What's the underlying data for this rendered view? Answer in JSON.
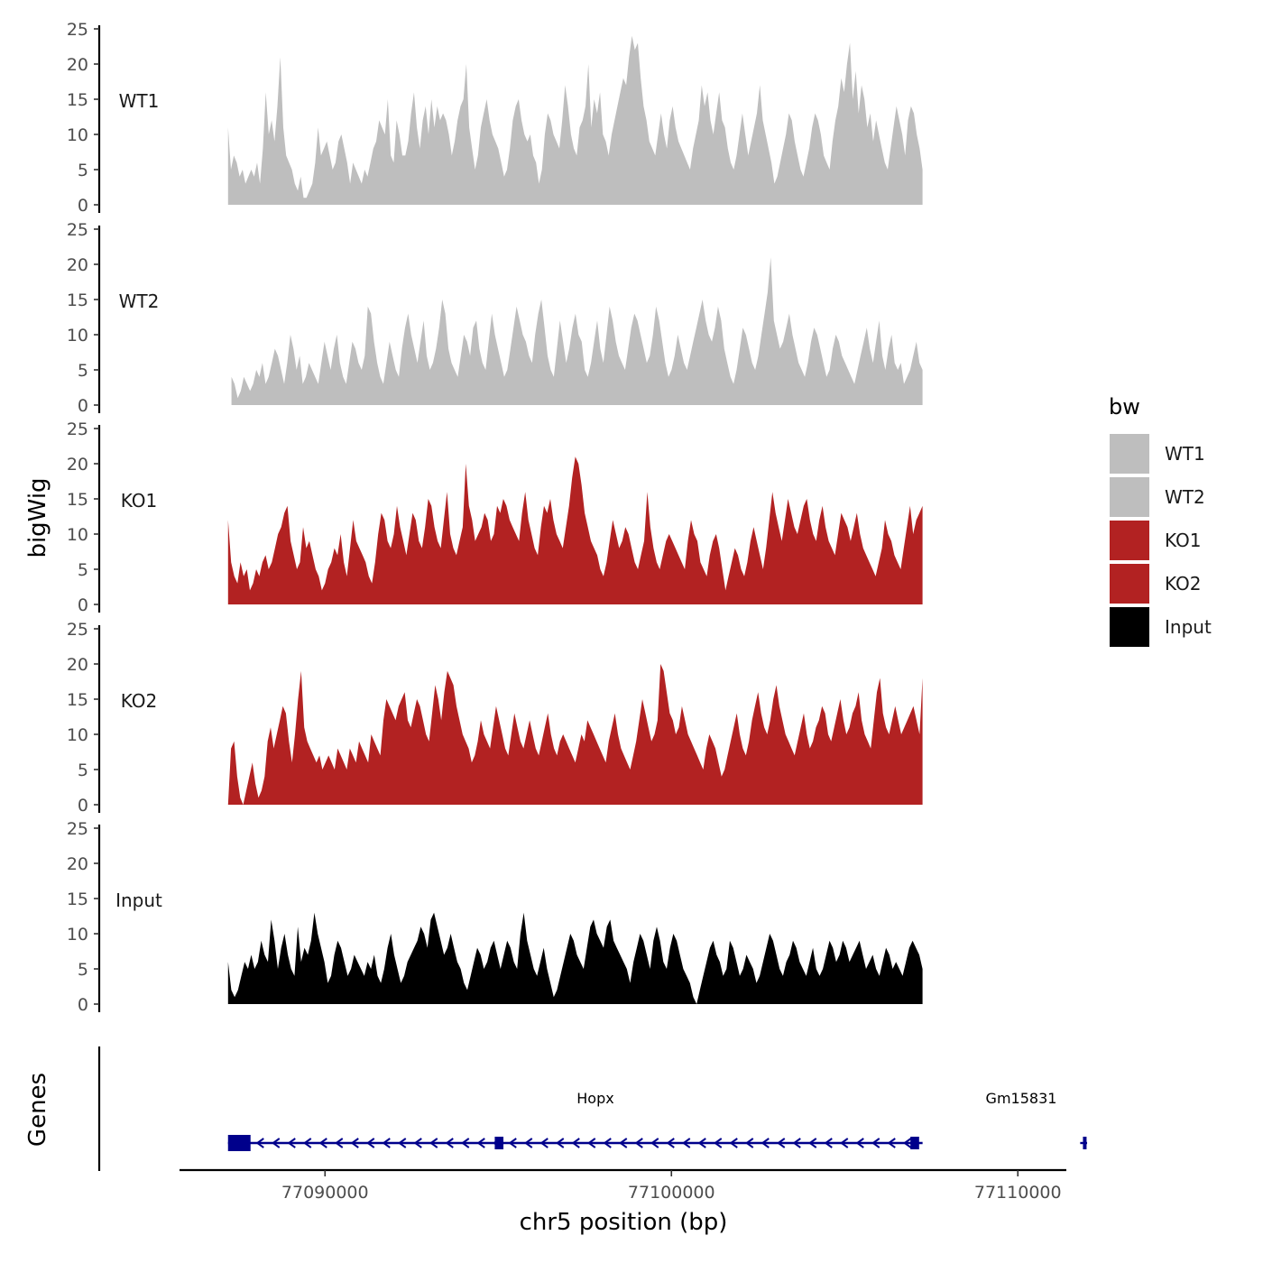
{
  "chart_data": {
    "type": "area",
    "ylabel": "bigWig",
    "xlabel": "chr5 position (bp)",
    "chromosome": "chr5",
    "ylim": [
      0,
      25
    ],
    "yticks": [
      0,
      5,
      10,
      15,
      20,
      25
    ],
    "xlim": [
      77085800,
      77111400
    ],
    "xticks": [
      77090000,
      77100000,
      77110000
    ],
    "xtick_labels": [
      "77090000",
      "77100000",
      "77110000"
    ],
    "xrange": [
      77087200,
      77107250
    ],
    "legend": {
      "title": "bw",
      "position": "right",
      "entries": [
        {
          "label": "WT1",
          "color": "#bebebe"
        },
        {
          "label": "WT2",
          "color": "#bebebe"
        },
        {
          "label": "KO1",
          "color": "#b22222"
        },
        {
          "label": "KO2",
          "color": "#b22222"
        },
        {
          "label": "Input",
          "color": "#000000"
        }
      ]
    },
    "tracks": [
      {
        "name": "WT1",
        "color": "#bebebe",
        "x0": 77087200,
        "x1": 77107250,
        "values": [
          11,
          5,
          7,
          6,
          4,
          5,
          3,
          4,
          5,
          4,
          6,
          3,
          8,
          16,
          10,
          12,
          9,
          14,
          21,
          11,
          7,
          6,
          5,
          3,
          2,
          4,
          1,
          1,
          2,
          3,
          6,
          11,
          7,
          8,
          9,
          7,
          5,
          6,
          9,
          10,
          8,
          6,
          3,
          6,
          5,
          4,
          3,
          5,
          4,
          6,
          8,
          9,
          12,
          11,
          10,
          15,
          7,
          6,
          12,
          10,
          7,
          7,
          9,
          13,
          16,
          11,
          8,
          12,
          14,
          10,
          15,
          11,
          14,
          12,
          13,
          12,
          10,
          7,
          9,
          12,
          14,
          15,
          20,
          11,
          8,
          5,
          7,
          11,
          13,
          15,
          12,
          10,
          9,
          8,
          6,
          4,
          5,
          8,
          12,
          14,
          15,
          12,
          10,
          9,
          10,
          7,
          6,
          3,
          5,
          10,
          13,
          12,
          10,
          9,
          8,
          12,
          17,
          14,
          10,
          8,
          7,
          11,
          12,
          14,
          20,
          11,
          15,
          13,
          16,
          10,
          9,
          7,
          10,
          12,
          14,
          16,
          18,
          17,
          21,
          24,
          22,
          23,
          18,
          14,
          12,
          9,
          8,
          7,
          10,
          13,
          10,
          8,
          12,
          14,
          11,
          9,
          8,
          7,
          6,
          5,
          8,
          10,
          12,
          17,
          14,
          16,
          12,
          10,
          13,
          16,
          12,
          11,
          8,
          6,
          5,
          7,
          10,
          13,
          10,
          7,
          9,
          11,
          13,
          17,
          12,
          10,
          8,
          6,
          3,
          4,
          6,
          8,
          10,
          13,
          12,
          9,
          7,
          5,
          4,
          6,
          8,
          11,
          13,
          12,
          10,
          7,
          6,
          5,
          9,
          12,
          14,
          18,
          16,
          20,
          23,
          15,
          19,
          13,
          17,
          15,
          11,
          13,
          9,
          12,
          10,
          8,
          6,
          5,
          8,
          11,
          14,
          12,
          10,
          7,
          12,
          14,
          13,
          10,
          8,
          5
        ]
      },
      {
        "name": "WT2",
        "color": "#bebebe",
        "x0": 77087300,
        "x1": 77107250,
        "values": [
          4,
          3,
          1,
          2,
          4,
          3,
          2,
          3,
          5,
          4,
          6,
          3,
          4,
          6,
          8,
          7,
          5,
          3,
          6,
          10,
          8,
          5,
          7,
          3,
          4,
          6,
          5,
          4,
          3,
          6,
          9,
          7,
          5,
          8,
          10,
          6,
          4,
          3,
          6,
          9,
          8,
          6,
          5,
          7,
          14,
          13,
          9,
          6,
          4,
          3,
          6,
          9,
          7,
          5,
          4,
          8,
          11,
          13,
          10,
          8,
          6,
          9,
          12,
          7,
          5,
          6,
          8,
          11,
          15,
          13,
          8,
          6,
          5,
          4,
          7,
          10,
          9,
          7,
          11,
          12,
          8,
          6,
          5,
          9,
          13,
          10,
          8,
          6,
          4,
          5,
          8,
          11,
          14,
          12,
          10,
          9,
          7,
          6,
          10,
          13,
          15,
          11,
          7,
          5,
          4,
          8,
          12,
          9,
          6,
          8,
          11,
          13,
          10,
          9,
          5,
          4,
          6,
          9,
          12,
          8,
          6,
          10,
          14,
          12,
          9,
          7,
          6,
          5,
          8,
          11,
          13,
          12,
          10,
          8,
          6,
          7,
          10,
          14,
          12,
          9,
          6,
          4,
          5,
          7,
          10,
          8,
          6,
          5,
          7,
          9,
          11,
          13,
          15,
          12,
          10,
          9,
          11,
          14,
          12,
          8,
          6,
          4,
          3,
          5,
          8,
          11,
          10,
          8,
          6,
          5,
          7,
          10,
          13,
          16,
          21,
          12,
          10,
          8,
          9,
          11,
          13,
          10,
          8,
          6,
          5,
          4,
          6,
          9,
          11,
          10,
          8,
          6,
          4,
          5,
          8,
          10,
          9,
          7,
          6,
          5,
          4,
          3,
          5,
          7,
          9,
          11,
          8,
          6,
          9,
          12,
          7,
          5,
          8,
          10,
          6,
          5,
          6,
          3,
          4,
          5,
          7,
          9,
          6,
          5
        ]
      },
      {
        "name": "KO1",
        "color": "#b22222",
        "x0": 77087200,
        "x1": 77107250,
        "values": [
          12,
          6,
          4,
          3,
          6,
          4,
          5,
          2,
          3,
          5,
          4,
          6,
          7,
          5,
          6,
          8,
          10,
          11,
          13,
          14,
          9,
          7,
          5,
          6,
          11,
          8,
          9,
          7,
          5,
          4,
          2,
          3,
          5,
          6,
          8,
          7,
          10,
          6,
          4,
          8,
          12,
          9,
          8,
          7,
          6,
          4,
          3,
          6,
          10,
          13,
          12,
          9,
          8,
          10,
          14,
          11,
          9,
          7,
          10,
          13,
          12,
          9,
          8,
          11,
          15,
          14,
          11,
          9,
          8,
          12,
          16,
          10,
          8,
          7,
          9,
          11,
          20,
          14,
          12,
          9,
          10,
          11,
          13,
          12,
          9,
          10,
          14,
          13,
          15,
          14,
          12,
          11,
          10,
          9,
          13,
          16,
          12,
          10,
          8,
          7,
          11,
          14,
          13,
          15,
          12,
          10,
          9,
          8,
          11,
          14,
          18,
          21,
          20,
          17,
          13,
          11,
          9,
          8,
          7,
          5,
          4,
          6,
          9,
          12,
          10,
          8,
          9,
          11,
          10,
          8,
          6,
          5,
          7,
          9,
          16,
          11,
          8,
          6,
          5,
          7,
          9,
          10,
          9,
          8,
          7,
          6,
          5,
          9,
          12,
          10,
          9,
          6,
          5,
          4,
          7,
          9,
          10,
          8,
          5,
          2,
          4,
          6,
          8,
          7,
          5,
          4,
          6,
          9,
          11,
          9,
          7,
          5,
          8,
          12,
          16,
          13,
          11,
          9,
          12,
          15,
          13,
          11,
          10,
          12,
          14,
          15,
          12,
          10,
          9,
          12,
          14,
          11,
          9,
          8,
          7,
          10,
          13,
          12,
          11,
          9,
          11,
          13,
          10,
          8,
          7,
          6,
          5,
          4,
          6,
          8,
          12,
          10,
          9,
          7,
          6,
          5,
          8,
          11,
          14,
          10,
          12,
          13,
          14
        ]
      },
      {
        "name": "KO2",
        "color": "#b22222",
        "x0": 77087200,
        "x1": 77107250,
        "values": [
          0,
          8,
          9,
          4,
          1,
          0,
          2,
          4,
          6,
          3,
          1,
          2,
          4,
          9,
          11,
          8,
          10,
          12,
          14,
          13,
          9,
          6,
          10,
          15,
          19,
          11,
          9,
          8,
          7,
          6,
          7,
          5,
          6,
          7,
          6,
          5,
          8,
          7,
          6,
          5,
          8,
          7,
          6,
          9,
          8,
          7,
          6,
          10,
          9,
          8,
          7,
          12,
          15,
          14,
          13,
          12,
          14,
          15,
          16,
          12,
          11,
          13,
          15,
          14,
          12,
          10,
          9,
          13,
          17,
          15,
          12,
          16,
          19,
          18,
          17,
          14,
          12,
          10,
          9,
          8,
          6,
          7,
          9,
          12,
          10,
          9,
          8,
          11,
          14,
          12,
          10,
          8,
          7,
          10,
          13,
          11,
          9,
          8,
          10,
          12,
          10,
          8,
          7,
          9,
          11,
          13,
          10,
          8,
          7,
          9,
          10,
          9,
          8,
          7,
          6,
          8,
          10,
          9,
          12,
          11,
          10,
          9,
          8,
          7,
          6,
          9,
          11,
          13,
          10,
          8,
          7,
          6,
          5,
          7,
          9,
          12,
          15,
          13,
          11,
          9,
          10,
          12,
          20,
          19,
          16,
          13,
          12,
          10,
          11,
          14,
          12,
          10,
          9,
          8,
          7,
          6,
          5,
          8,
          10,
          9,
          8,
          6,
          4,
          5,
          7,
          9,
          11,
          13,
          10,
          8,
          7,
          9,
          12,
          14,
          16,
          13,
          11,
          10,
          12,
          15,
          17,
          14,
          12,
          10,
          9,
          8,
          7,
          9,
          11,
          13,
          10,
          8,
          9,
          11,
          12,
          14,
          13,
          10,
          9,
          11,
          13,
          15,
          12,
          10,
          11,
          13,
          14,
          16,
          12,
          10,
          9,
          8,
          12,
          16,
          18,
          13,
          11,
          10,
          12,
          14,
          12,
          10,
          11,
          12,
          13,
          14,
          12,
          10,
          18
        ]
      },
      {
        "name": "Input",
        "color": "#000000",
        "x0": 77087200,
        "x1": 77107250,
        "values": [
          6,
          2,
          1,
          2,
          4,
          6,
          5,
          7,
          5,
          6,
          9,
          7,
          6,
          12,
          9,
          5,
          8,
          10,
          7,
          5,
          4,
          11,
          6,
          8,
          7,
          9,
          13,
          10,
          8,
          6,
          3,
          4,
          7,
          9,
          8,
          6,
          4,
          5,
          7,
          6,
          5,
          4,
          6,
          5,
          7,
          4,
          3,
          5,
          8,
          10,
          7,
          5,
          3,
          4,
          6,
          7,
          8,
          9,
          11,
          10,
          8,
          12,
          13,
          11,
          9,
          7,
          8,
          10,
          8,
          6,
          5,
          3,
          2,
          4,
          6,
          8,
          7,
          5,
          6,
          8,
          9,
          7,
          5,
          7,
          9,
          8,
          6,
          5,
          10,
          13,
          9,
          7,
          5,
          4,
          6,
          8,
          5,
          3,
          1,
          2,
          4,
          6,
          8,
          10,
          9,
          7,
          6,
          5,
          8,
          11,
          12,
          10,
          9,
          8,
          11,
          12,
          9,
          8,
          7,
          6,
          5,
          3,
          6,
          8,
          10,
          9,
          7,
          5,
          9,
          11,
          9,
          6,
          5,
          8,
          10,
          9,
          7,
          5,
          4,
          3,
          1,
          0,
          2,
          4,
          6,
          8,
          9,
          7,
          6,
          4,
          5,
          9,
          8,
          6,
          4,
          5,
          7,
          6,
          5,
          3,
          4,
          6,
          8,
          10,
          9,
          7,
          5,
          4,
          6,
          7,
          9,
          8,
          6,
          5,
          4,
          6,
          8,
          5,
          4,
          5,
          7,
          9,
          8,
          6,
          7,
          9,
          8,
          6,
          7,
          8,
          9,
          7,
          5,
          6,
          7,
          5,
          4,
          6,
          8,
          7,
          5,
          6,
          5,
          4,
          6,
          8,
          9,
          8,
          7,
          5
        ]
      }
    ],
    "gene_track": {
      "label": "Genes",
      "color": "#00008b",
      "genes": [
        {
          "name": "Hopx",
          "start": 77087200,
          "end": 77115000,
          "visible_end": 77107250,
          "strand": "-",
          "exons": [
            [
              77087200,
              77087850
            ],
            [
              77094900,
              77095150
            ],
            [
              77106900,
              77107150
            ]
          ]
        },
        {
          "name": "Gm15831",
          "start": 77111800,
          "end": 77112000,
          "strand": "-",
          "exons": [
            [
              77111880,
              77111930
            ]
          ]
        }
      ]
    }
  }
}
